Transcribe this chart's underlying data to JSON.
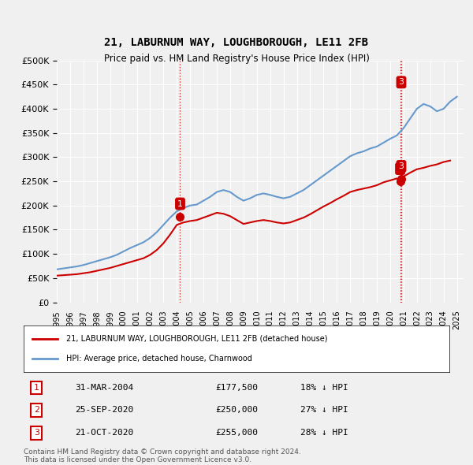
{
  "title": "21, LABURNUM WAY, LOUGHBOROUGH, LE11 2FB",
  "subtitle": "Price paid vs. HM Land Registry's House Price Index (HPI)",
  "legend_label_red": "21, LABURNUM WAY, LOUGHBOROUGH, LE11 2FB (detached house)",
  "legend_label_blue": "HPI: Average price, detached house, Charnwood",
  "footnote1": "Contains HM Land Registry data © Crown copyright and database right 2024.",
  "footnote2": "This data is licensed under the Open Government Licence v3.0.",
  "transactions": [
    {
      "num": 1,
      "date": "31-MAR-2004",
      "price": "£177,500",
      "pct": "18% ↓ HPI",
      "year": 2004.25,
      "value": 177500
    },
    {
      "num": 2,
      "date": "25-SEP-2020",
      "price": "£250,000",
      "pct": "27% ↓ HPI",
      "year": 2020.75,
      "value": 250000
    },
    {
      "num": 3,
      "date": "21-OCT-2020",
      "price": "£255,000",
      "pct": "28% ↓ HPI",
      "year": 2020.83,
      "value": 255000
    }
  ],
  "hpi_years": [
    1995,
    1995.5,
    1996,
    1996.5,
    1997,
    1997.5,
    1998,
    1998.5,
    1999,
    1999.5,
    2000,
    2000.5,
    2001,
    2001.5,
    2002,
    2002.5,
    2003,
    2003.5,
    2004,
    2004.5,
    2005,
    2005.5,
    2006,
    2006.5,
    2007,
    2007.5,
    2008,
    2008.5,
    2009,
    2009.5,
    2010,
    2010.5,
    2011,
    2011.5,
    2012,
    2012.5,
    2013,
    2013.5,
    2014,
    2014.5,
    2015,
    2015.5,
    2016,
    2016.5,
    2017,
    2017.5,
    2018,
    2018.5,
    2019,
    2019.5,
    2020,
    2020.5,
    2021,
    2021.5,
    2022,
    2022.5,
    2023,
    2023.5,
    2024,
    2024.5,
    2025
  ],
  "hpi_values": [
    68000,
    70000,
    72000,
    74000,
    77000,
    81000,
    85000,
    89000,
    93000,
    98000,
    105000,
    112000,
    118000,
    124000,
    133000,
    145000,
    160000,
    175000,
    188000,
    195000,
    200000,
    202000,
    210000,
    218000,
    228000,
    232000,
    228000,
    218000,
    210000,
    215000,
    222000,
    225000,
    222000,
    218000,
    215000,
    218000,
    225000,
    232000,
    242000,
    252000,
    262000,
    272000,
    282000,
    292000,
    302000,
    308000,
    312000,
    318000,
    322000,
    330000,
    338000,
    345000,
    360000,
    380000,
    400000,
    410000,
    405000,
    395000,
    400000,
    415000,
    425000
  ],
  "price_years": [
    1995,
    1995.5,
    1996,
    1996.5,
    1997,
    1997.5,
    1998,
    1998.5,
    1999,
    1999.5,
    2000,
    2000.5,
    2001,
    2001.5,
    2002,
    2002.5,
    2003,
    2003.5,
    2004,
    2004.5,
    2005,
    2005.5,
    2006,
    2006.5,
    2007,
    2007.5,
    2008,
    2008.5,
    2009,
    2009.5,
    2010,
    2010.5,
    2011,
    2011.5,
    2012,
    2012.5,
    2013,
    2013.5,
    2014,
    2014.5,
    2015,
    2015.5,
    2016,
    2016.5,
    2017,
    2017.5,
    2018,
    2018.5,
    2019,
    2019.5,
    2020,
    2020.5,
    2020.75,
    2020.83,
    2021,
    2021.5,
    2022,
    2022.5,
    2023,
    2023.5,
    2024,
    2024.5
  ],
  "price_values": [
    55000,
    56000,
    57000,
    58000,
    60000,
    62000,
    65000,
    68000,
    71000,
    75000,
    79000,
    83000,
    87000,
    91000,
    98000,
    108000,
    122000,
    140000,
    160000,
    165000,
    168000,
    170000,
    175000,
    180000,
    185000,
    183000,
    178000,
    170000,
    162000,
    165000,
    168000,
    170000,
    168000,
    165000,
    163000,
    165000,
    170000,
    175000,
    182000,
    190000,
    198000,
    205000,
    213000,
    220000,
    228000,
    232000,
    235000,
    238000,
    242000,
    248000,
    252000,
    256000,
    250000,
    255000,
    260000,
    268000,
    275000,
    278000,
    282000,
    285000,
    290000,
    293000
  ],
  "bg_color": "#f0f0f0",
  "plot_bg": "#f0f0f0",
  "grid_color": "#ffffff",
  "red_color": "#cc0000",
  "blue_color": "#6699cc",
  "marker_color_red": "#cc0000",
  "dashed_color": "#cc0000",
  "ylim": [
    0,
    500000
  ],
  "xlim_start": 1995,
  "xlim_end": 2025.5
}
